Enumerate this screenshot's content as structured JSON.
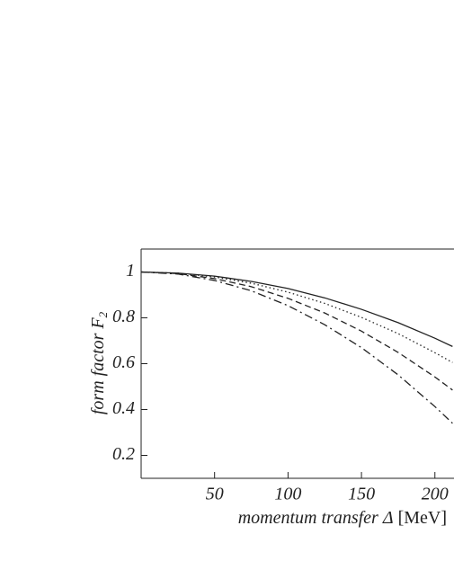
{
  "chart_data": {
    "type": "line",
    "xlabel": "momentum transfer Δ",
    "xunit": "[MeV]",
    "ylabel": "form  factor  F",
    "ylabel_sub": "2",
    "x": [
      0,
      25,
      50,
      75,
      100,
      125,
      150,
      175,
      200,
      212
    ],
    "series": [
      {
        "color": "#222222",
        "dash": "solid",
        "values": [
          1,
          0.995,
          0.982,
          0.959,
          0.928,
          0.887,
          0.837,
          0.779,
          0.711,
          0.675
        ]
      },
      {
        "color": "#222222",
        "dash": "dotted",
        "values": [
          1,
          0.995,
          0.978,
          0.951,
          0.912,
          0.863,
          0.802,
          0.731,
          0.648,
          0.605
        ]
      },
      {
        "color": "#222222",
        "dash": "dashed",
        "values": [
          1,
          0.993,
          0.971,
          0.936,
          0.885,
          0.821,
          0.742,
          0.649,
          0.542,
          0.485
        ]
      },
      {
        "color": "#222222",
        "dash": "dashdot",
        "values": [
          1,
          0.991,
          0.963,
          0.918,
          0.853,
          0.77,
          0.67,
          0.551,
          0.413,
          0.34
        ]
      }
    ],
    "xlim": [
      0,
      213
    ],
    "ylim": [
      0.1,
      1.1
    ],
    "xticks": [
      50,
      100,
      150,
      200
    ],
    "yticks": [
      0.2,
      0.4,
      0.6,
      0.8,
      1
    ],
    "grid": false
  }
}
